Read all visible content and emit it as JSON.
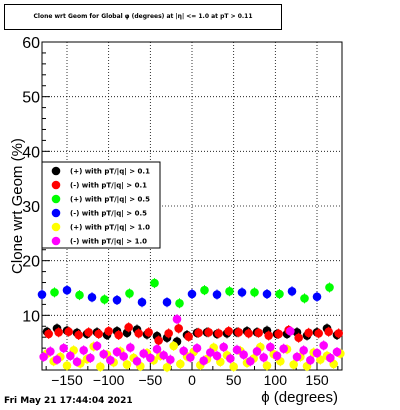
{
  "chart_data": {
    "type": "scatter",
    "title": "Clone wrt Geom for Global φ (degrees) at |η| <= 1.0 at pT > 0.11",
    "xlabel": "ϕ (degrees)",
    "ylabel": "Clone wrt Geom (%)",
    "xlim": [
      -180,
      180
    ],
    "ylim": [
      0,
      60
    ],
    "x_ticks": [
      -150,
      -100,
      -50,
      0,
      50,
      100,
      150
    ],
    "y_ticks": [
      10,
      20,
      30,
      40,
      50,
      60
    ],
    "grid": true,
    "legend_position": "center-left",
    "series": [
      {
        "name": "(+) with pT/|q| > 0.1",
        "color": "#000000",
        "x": [
          -174,
          -162,
          -150,
          -138,
          -126,
          -114,
          -102,
          -90,
          -78,
          -66,
          -54,
          -42,
          -30,
          -18,
          -6,
          6,
          18,
          30,
          42,
          54,
          66,
          78,
          90,
          102,
          114,
          126,
          138,
          150,
          162,
          174
        ],
        "values": [
          7.0,
          7.6,
          7.2,
          6.8,
          6.6,
          6.9,
          6.4,
          7.1,
          6.8,
          7.4,
          6.5,
          6.2,
          5.9,
          5.2,
          6.4,
          6.8,
          6.9,
          6.6,
          6.7,
          6.9,
          7.1,
          6.9,
          7.2,
          6.6,
          6.6,
          6.9,
          6.3,
          6.9,
          7.6,
          6.4
        ]
      },
      {
        "name": "(-) with pT/|q| > 0.1",
        "color": "#ff0000",
        "x": [
          -172,
          -160,
          -148,
          -136,
          -124,
          -112,
          -100,
          -88,
          -76,
          -64,
          -52,
          -40,
          -28,
          -16,
          -4,
          8,
          20,
          32,
          44,
          56,
          68,
          80,
          92,
          104,
          116,
          128,
          140,
          152,
          164,
          176
        ],
        "values": [
          6.6,
          6.9,
          7.0,
          6.4,
          6.9,
          6.6,
          7.1,
          6.4,
          7.8,
          6.7,
          6.9,
          5.4,
          6.7,
          7.6,
          6.1,
          6.8,
          6.9,
          6.7,
          7.1,
          6.9,
          6.7,
          6.8,
          6.3,
          6.6,
          7.3,
          5.9,
          6.8,
          6.7,
          7.0,
          6.7
        ]
      },
      {
        "name": "(+) with pT/|q| > 0.5",
        "color": "#00ff00",
        "x": [
          -165,
          -135,
          -105,
          -75,
          -45,
          -15,
          15,
          45,
          75,
          105,
          135,
          165
        ],
        "values": [
          14.2,
          13.7,
          12.9,
          14.0,
          15.9,
          12.2,
          14.6,
          14.4,
          14.2,
          13.9,
          13.1,
          15.1
        ]
      },
      {
        "name": "(-) with pT/|q| > 0.5",
        "color": "#0000ff",
        "x": [
          -180,
          -150,
          -120,
          -90,
          -60,
          -30,
          0,
          30,
          60,
          90,
          120,
          150
        ],
        "values": [
          13.8,
          14.6,
          13.3,
          12.8,
          12.4,
          12.4,
          13.9,
          13.8,
          14.2,
          13.9,
          14.4,
          13.4
        ]
      },
      {
        "name": "(+) with pT/|q| > 1.0",
        "color": "#ffff00",
        "x": [
          -174,
          -166,
          -158,
          -150,
          -142,
          -134,
          -126,
          -118,
          -110,
          -102,
          -94,
          -86,
          -78,
          -70,
          -62,
          -54,
          -46,
          -38,
          -30,
          -22,
          -14,
          -6,
          2,
          10,
          18,
          26,
          34,
          42,
          50,
          58,
          66,
          74,
          82,
          90,
          98,
          106,
          114,
          122,
          130,
          138,
          146,
          154,
          162,
          170,
          178
        ],
        "values": [
          3.0,
          1.6,
          2.4,
          0.8,
          3.6,
          1.2,
          2.0,
          4.3,
          0.6,
          2.8,
          1.4,
          3.4,
          1.0,
          2.2,
          0.7,
          3.1,
          1.8,
          2.6,
          0.5,
          4.4,
          1.1,
          2.5,
          3.3,
          0.9,
          2.0,
          4.1,
          1.5,
          2.7,
          0.6,
          3.5,
          1.3,
          2.1,
          4.2,
          0.8,
          2.9,
          1.6,
          3.8,
          1.0,
          2.4,
          0.7,
          3.2,
          1.9,
          2.6,
          1.1,
          3.0
        ]
      },
      {
        "name": "(-) with pT/|q| > 1.0",
        "color": "#ff00ff",
        "x": [
          -178,
          -170,
          -162,
          -154,
          -146,
          -138,
          -130,
          -122,
          -114,
          -106,
          -98,
          -90,
          -82,
          -74,
          -66,
          -58,
          -50,
          -42,
          -34,
          -26,
          -18,
          -10,
          -2,
          6,
          14,
          22,
          30,
          38,
          46,
          54,
          62,
          70,
          78,
          86,
          94,
          102,
          110,
          118,
          126,
          134,
          142,
          150,
          158,
          166,
          174
        ],
        "values": [
          2.4,
          3.4,
          1.9,
          4.0,
          2.6,
          1.5,
          3.6,
          2.2,
          4.4,
          2.9,
          1.8,
          3.3,
          2.5,
          4.1,
          1.6,
          3.0,
          2.2,
          3.8,
          2.7,
          1.9,
          9.3,
          3.5,
          2.3,
          4.0,
          1.7,
          3.2,
          2.6,
          4.2,
          2.1,
          3.7,
          2.8,
          1.6,
          3.4,
          2.3,
          4.2,
          2.6,
          3.9,
          7.1,
          2.4,
          3.6,
          1.8,
          3.1,
          4.5,
          2.2,
          3.3
        ]
      }
    ]
  },
  "timestamp": "Fri May 21 17:44:04 2021"
}
